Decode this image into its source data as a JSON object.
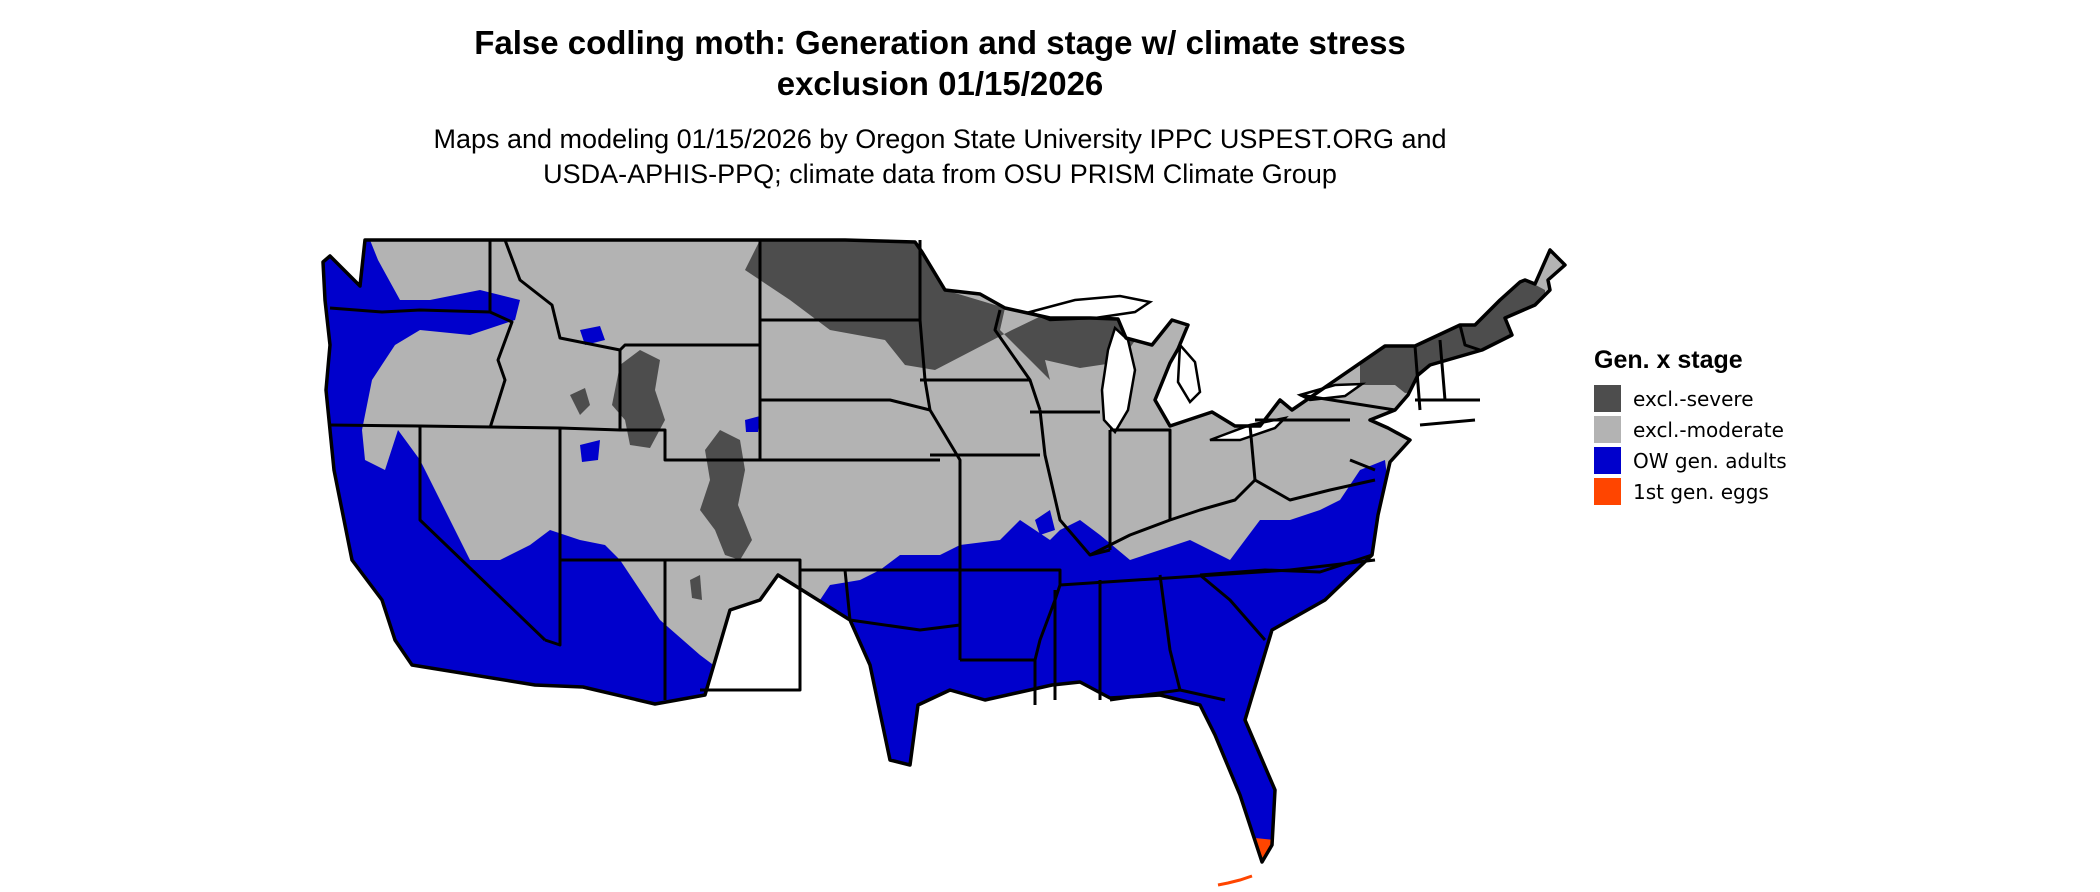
{
  "title": {
    "line1": "False codling moth: Generation and stage w/ climate stress",
    "line2": "exclusion 01/15/2026"
  },
  "subtitle": {
    "line1": "Maps and modeling 01/15/2026 by Oregon State University IPPC USPEST.ORG and",
    "line2": "USDA-APHIS-PPQ; climate data from OSU PRISM Climate Group"
  },
  "legend": {
    "title": "Gen. x stage",
    "items": [
      {
        "label": "excl.-severe",
        "color": "#4d4d4d"
      },
      {
        "label": "excl.-moderate",
        "color": "#b3b3b3"
      },
      {
        "label": "OW gen. adults",
        "color": "#0000cc"
      },
      {
        "label": "1st gen. eggs",
        "color": "#ff4500"
      }
    ]
  },
  "map": {
    "region": "contiguous-united-states",
    "boundary_color": "#000000",
    "background_color": "#ffffff"
  }
}
